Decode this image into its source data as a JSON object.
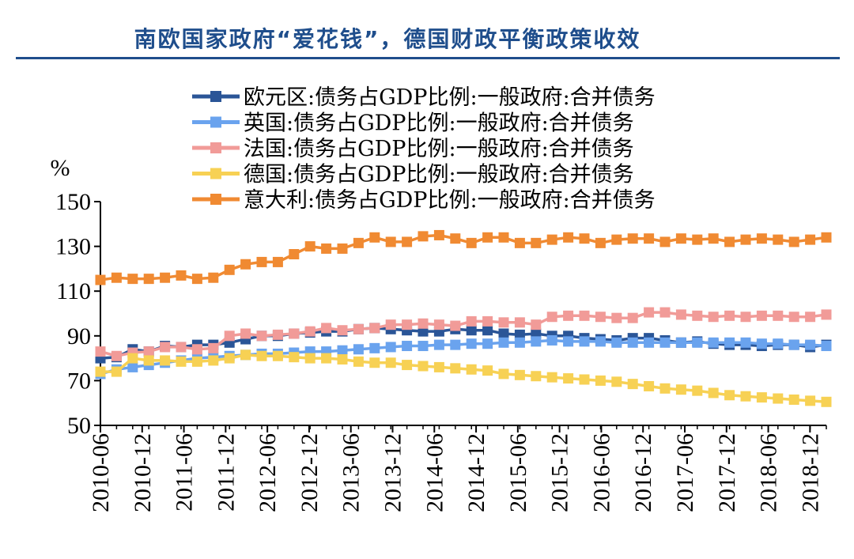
{
  "header": {
    "title": "南欧国家政府“爱花钱”，德国财政平衡政策收效"
  },
  "chart_data": {
    "type": "line",
    "title": "南欧国家政府“爱花钱”，德国财政平衡政策收效",
    "ylabel": "%",
    "ylim": [
      50,
      150
    ],
    "yticks": [
      50,
      70,
      90,
      110,
      130,
      150
    ],
    "xtick_labels": [
      "2010-06",
      "2010-12",
      "2011-06",
      "2011-12",
      "2012-06",
      "2012-12",
      "2013-06",
      "2013-12",
      "2014-06",
      "2014-12",
      "2015-06",
      "2015-12",
      "2016-06",
      "2016-12",
      "2017-06",
      "2017-12",
      "2018-06",
      "2018-12"
    ],
    "grid": false,
    "legend_position": "top",
    "series": [
      {
        "name": "欧元区:债务占GDP比例:一般政府:合并债务",
        "color": "#2a5597",
        "values": [
          80,
          80.5,
          84,
          83,
          85.5,
          85,
          86,
          86,
          87,
          88.5,
          90,
          90,
          91,
          91.5,
          92,
          92,
          93,
          93.5,
          93,
          92.5,
          92,
          92,
          93,
          92.5,
          92.5,
          91,
          90.5,
          91,
          90,
          90,
          89,
          88.5,
          88,
          89,
          89,
          88,
          87,
          87.5,
          86.5,
          86,
          86,
          85.5,
          86,
          86,
          85,
          86
        ]
      },
      {
        "name": "英国:债务占GDP比例:一般政府:合并债务",
        "color": "#6aa3ee",
        "values": [
          73,
          75,
          76,
          77,
          78,
          79,
          80,
          80.5,
          81,
          81.5,
          82,
          82,
          82.5,
          83,
          83,
          83.5,
          84,
          84.5,
          85,
          85.5,
          85.5,
          86,
          86,
          86.5,
          86.5,
          87,
          87,
          87.5,
          88,
          87.5,
          87.5,
          87.5,
          87,
          87,
          87,
          87,
          87,
          87,
          87,
          87,
          87,
          86.5,
          86.5,
          86,
          86,
          85.5
        ]
      },
      {
        "name": "法国:债务占GDP比例:一般政府:合并债务",
        "color": "#f19b98",
        "values": [
          83,
          81,
          82.5,
          83,
          85,
          85,
          84,
          84.5,
          90,
          91,
          90,
          90.5,
          91,
          92,
          93.5,
          92.5,
          93,
          93.5,
          95,
          95,
          95.5,
          95,
          94.5,
          96.5,
          96.5,
          96,
          96,
          95,
          98.5,
          99,
          99,
          98.5,
          98,
          98,
          100.5,
          100.5,
          99.5,
          99,
          98.5,
          99,
          98.5,
          99,
          99,
          98.5,
          98.5,
          99.5
        ]
      },
      {
        "name": "德国:债务占GDP比例:一般政府:合并债务",
        "color": "#f7d154",
        "values": [
          74,
          74,
          80,
          79,
          79,
          78.5,
          78.5,
          79,
          80,
          81.5,
          81,
          81,
          80.5,
          80,
          80,
          79.5,
          78.5,
          78,
          78,
          77,
          76.5,
          76,
          75.5,
          75,
          74.5,
          73,
          72.5,
          72,
          71.5,
          71,
          70.5,
          70,
          69.5,
          68.5,
          67.5,
          66.5,
          66,
          65.5,
          64.5,
          63.5,
          63,
          62.5,
          62,
          61.5,
          61,
          60.5
        ]
      },
      {
        "name": "意大利:债务占GDP比例:一般政府:合并债务",
        "color": "#f08a32",
        "values": [
          115,
          116,
          115.5,
          115.5,
          116,
          117,
          115.5,
          116,
          119.5,
          122,
          123,
          123,
          126.5,
          130,
          129,
          129,
          131.5,
          134,
          132,
          132,
          134.5,
          135,
          133.5,
          131.5,
          134,
          134,
          131.5,
          131.5,
          133,
          134,
          133.5,
          131.5,
          133,
          133.5,
          133.5,
          132,
          133.5,
          133,
          133.5,
          132,
          133,
          133.5,
          133,
          132,
          133,
          134
        ]
      }
    ]
  }
}
